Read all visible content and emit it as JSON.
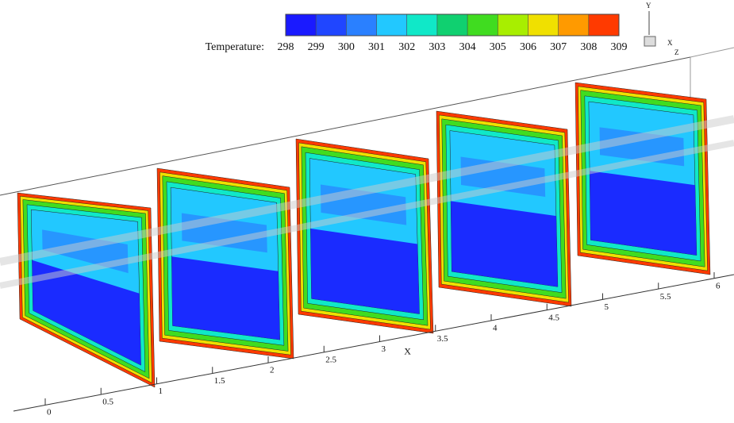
{
  "chart_data": {
    "type": "contour",
    "colorbar": {
      "label": "Temperature:",
      "lim": [
        298,
        309
      ],
      "ticks": [
        298,
        299,
        300,
        301,
        302,
        303,
        304,
        305,
        306,
        307,
        308,
        309
      ],
      "colors": [
        "#1a1aff",
        "#2046ff",
        "#2a80ff",
        "#22c8ff",
        "#10e8c8",
        "#10d070",
        "#40dc20",
        "#a8ee00",
        "#f0e000",
        "#ff9a00",
        "#ff3a00"
      ]
    },
    "x_axis": {
      "label": "X",
      "ticks": [
        0,
        0.5,
        1,
        1.5,
        2,
        2.5,
        3,
        3.5,
        4,
        4.5,
        5,
        5.5,
        6
      ]
    },
    "axis_triad": [
      "Y",
      "X",
      "Z"
    ]
  }
}
